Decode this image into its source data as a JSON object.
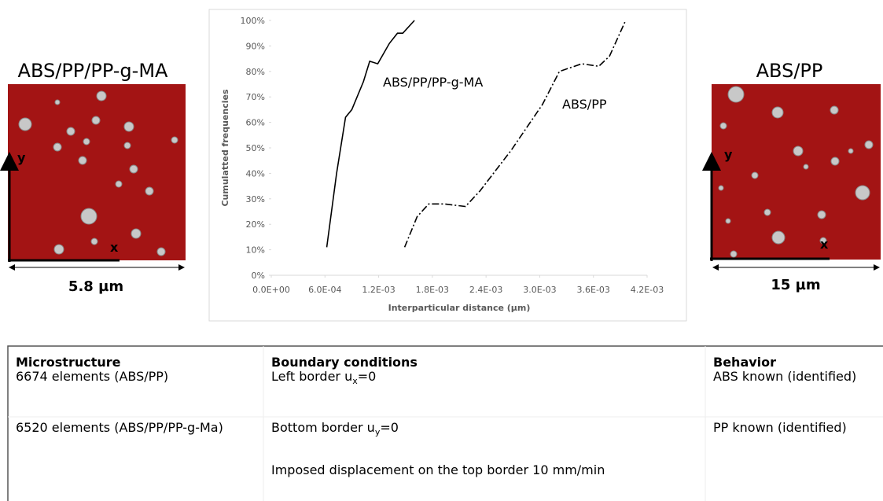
{
  "chart_data": {
    "type": "line",
    "xlabel": "Interparticular distance (µm)",
    "ylabel": "Cumulatted frequencies",
    "xlim": [
      0,
      0.0042
    ],
    "ylim": [
      0,
      100
    ],
    "xticks": [
      {
        "value": 0,
        "label": "0.0E+00"
      },
      {
        "value": 0.0006,
        "label": "6.0E-04"
      },
      {
        "value": 0.0012,
        "label": "1.2E-03"
      },
      {
        "value": 0.0018,
        "label": "1.8E-03"
      },
      {
        "value": 0.0024,
        "label": "2.4E-03"
      },
      {
        "value": 0.003,
        "label": "3.0E-03"
      },
      {
        "value": 0.0036,
        "label": "3.6E-03"
      },
      {
        "value": 0.0042,
        "label": "4.2E-03"
      }
    ],
    "yticks": [
      {
        "value": 0,
        "label": "0%"
      },
      {
        "value": 10,
        "label": "10%"
      },
      {
        "value": 20,
        "label": "20%"
      },
      {
        "value": 30,
        "label": "30%"
      },
      {
        "value": 40,
        "label": "40%"
      },
      {
        "value": 50,
        "label": "50%"
      },
      {
        "value": 60,
        "label": "60%"
      },
      {
        "value": 70,
        "label": "70%"
      },
      {
        "value": 80,
        "label": "80%"
      },
      {
        "value": 90,
        "label": "90%"
      },
      {
        "value": 100,
        "label": "100%"
      }
    ],
    "series": [
      {
        "name": "ABS/PP/PP-g-MA",
        "color": "#000000",
        "line_style": "solid",
        "x": [
          0.00062,
          0.00073,
          0.00083,
          0.0009,
          0.00103,
          0.0011,
          0.00119,
          0.00132,
          0.00141,
          0.00147,
          0.0016
        ],
        "values": [
          11,
          40,
          62,
          65,
          76,
          84,
          83,
          91,
          95,
          95,
          100
        ]
      },
      {
        "name": "ABS/PP",
        "color": "#000000",
        "line_style": "dash-dot",
        "x": [
          0.00149,
          0.00163,
          0.00176,
          0.00193,
          0.00217,
          0.00233,
          0.00268,
          0.00303,
          0.00322,
          0.00347,
          0.00366,
          0.00378,
          0.00396
        ],
        "values": [
          11,
          23,
          28,
          28,
          27,
          33,
          49,
          67,
          80,
          83,
          82,
          86,
          100
        ]
      }
    ]
  },
  "panels": {
    "left": {
      "title": "ABS/PP/PP-g-MA",
      "size": "5.8 µm",
      "y_axis": "y",
      "x_axis": "x"
    },
    "right": {
      "title": "ABS/PP",
      "size": "15 µm",
      "y_axis": "y",
      "x_axis": "x"
    }
  },
  "table": {
    "columns": [
      {
        "header": "Microstructure",
        "cells": [
          "6674 elements (ABS/PP)",
          "6520 elements (ABS/PP/PP-g-Ma)"
        ]
      },
      {
        "header": "Boundary conditions",
        "cells": [
          [
            "Left border u",
            "x",
            "=0"
          ],
          [
            "Bottom border u",
            "y",
            "=0"
          ],
          "Imposed displacement on the top border 10 mm/min"
        ]
      },
      {
        "header": "Behavior",
        "cells": [
          "ABS known (identified)",
          "PP known (identified)"
        ]
      }
    ]
  }
}
